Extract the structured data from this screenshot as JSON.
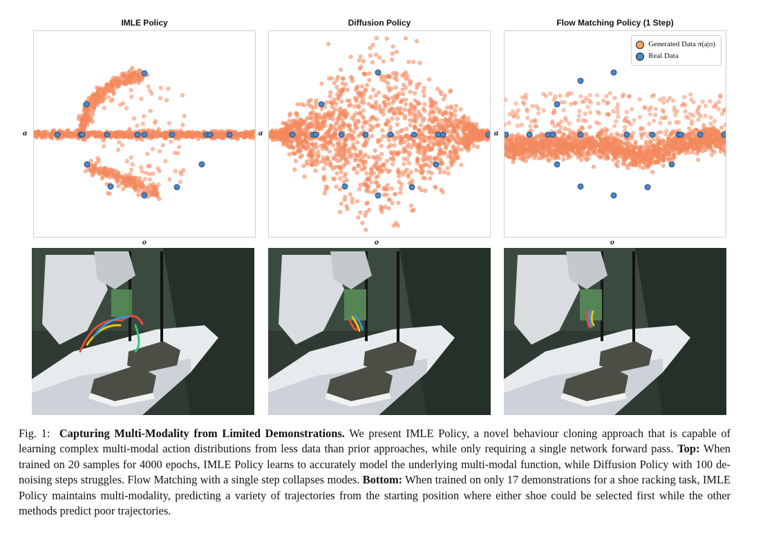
{
  "panels": [
    {
      "title": "IMLE Policy"
    },
    {
      "title": "Diffusion Policy"
    },
    {
      "title": "Flow Matching Policy (1 Step)"
    }
  ],
  "axes": {
    "xlabel": "o",
    "ylabel": "a"
  },
  "legend": {
    "generated": "Generated Data π(a|o)",
    "real": "Real Data"
  },
  "colors": {
    "generated": "#f4885e",
    "real": "#4c86c6",
    "real_edge": "#1f3b66"
  },
  "caption": {
    "fig_label": "Fig. 1:",
    "bold_title": "Capturing Multi-Modality from Limited Demonstrations.",
    "intro": "We present IMLE Policy, a novel behaviour cloning approach that is capable of learning complex multi-modal action distributions from less data than prior approaches, while only requiring a single network forward pass.",
    "top_label": "Top:",
    "top_text": "When trained on 20 samples for 4000 epochs, IMLE Policy learns to accurately model the underlying multi-modal function, while Diffusion Policy with 100 de-noising steps struggles. Flow Matching with a single step collapses modes.",
    "bottom_label": "Bottom:",
    "bottom_text": "When trained on only 17 demonstrations for a shoe racking task, IMLE Policy maintains multi-modality, predicting a variety of trajectories from the starting position where either shoe could be selected first while the other methods predict poor trajectories."
  }
}
